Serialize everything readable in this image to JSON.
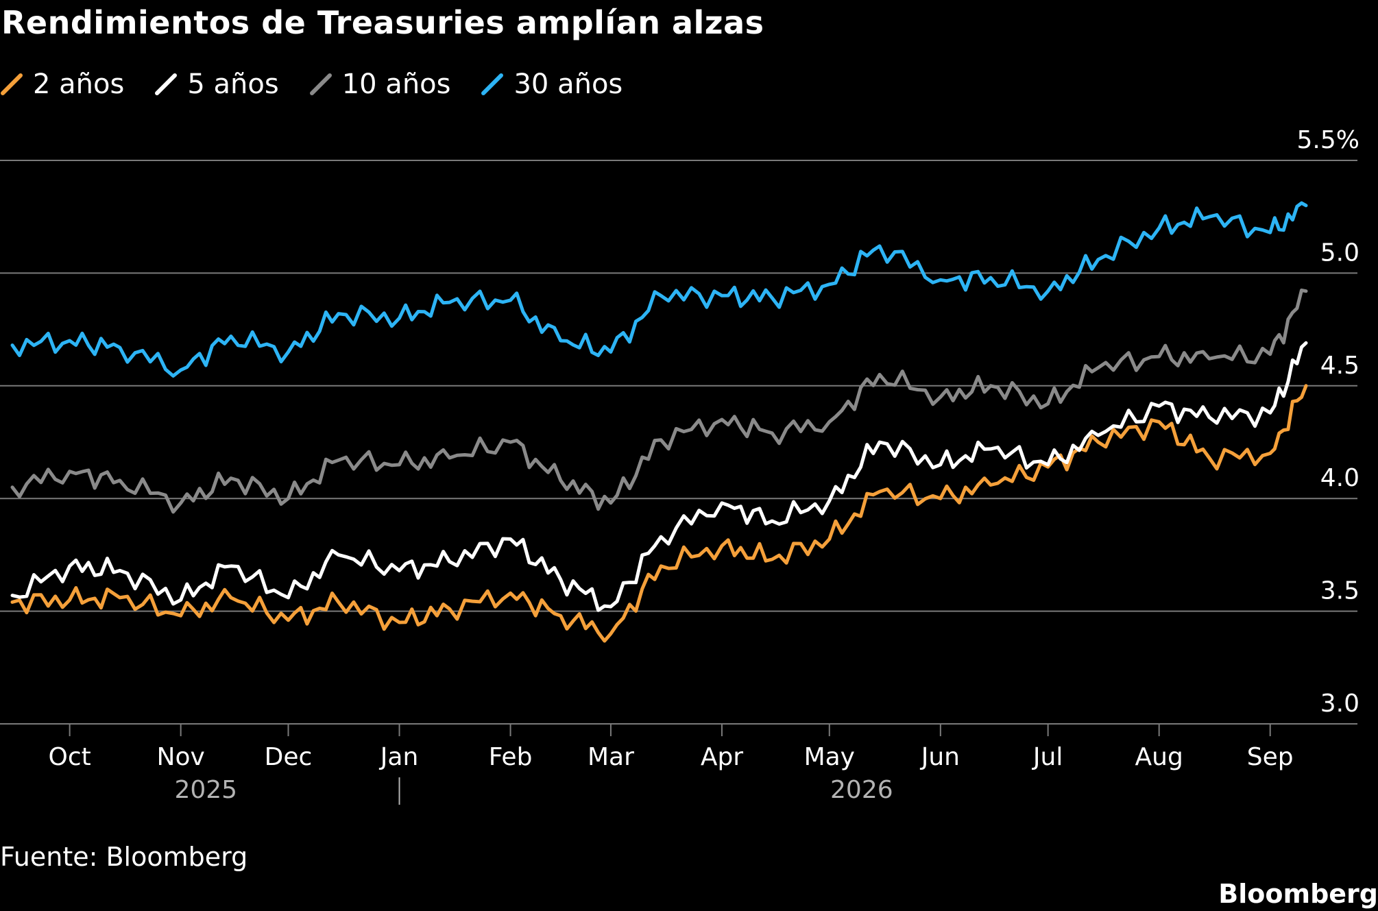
{
  "title": "Rendimientos de Treasuries amplían alzas",
  "source": "Fuente: Bloomberg",
  "brand": "Bloomberg",
  "colors": {
    "background": "#000000",
    "gridline": "#7a7a7a",
    "axis_text": "#ffffff",
    "year_text": "#b3b3b3"
  },
  "chart_data": {
    "type": "line",
    "title": "Rendimientos de Treasuries amplían alzas",
    "xlabel": "",
    "ylabel": "",
    "ylim": [
      3.0,
      5.5
    ],
    "y_ticks": [
      "5.5%",
      "5.0",
      "4.5",
      "4.0",
      "3.5",
      "3.0"
    ],
    "y_tick_values": [
      5.5,
      5.0,
      4.5,
      4.0,
      3.5,
      3.0
    ],
    "x_range": [
      "2025-09-15",
      "2026-09-11"
    ],
    "x_ticks": [
      {
        "label": "Oct",
        "date": "2025-10-01"
      },
      {
        "label": "Nov",
        "date": "2025-11-01"
      },
      {
        "label": "Dec",
        "date": "2025-12-01"
      },
      {
        "label": "Jan",
        "date": "2026-01-01"
      },
      {
        "label": "Feb",
        "date": "2026-02-01"
      },
      {
        "label": "Mar",
        "date": "2026-03-01"
      },
      {
        "label": "Apr",
        "date": "2026-04-01"
      },
      {
        "label": "May",
        "date": "2026-05-01"
      },
      {
        "label": "Jun",
        "date": "2026-06-01"
      },
      {
        "label": "Jul",
        "date": "2026-07-01"
      },
      {
        "label": "Aug",
        "date": "2026-08-01"
      },
      {
        "label": "Sep",
        "date": "2026-09-01"
      }
    ],
    "year_labels": [
      {
        "label": "2025",
        "date": "2025-11-08"
      },
      {
        "label": "2026",
        "date": "2026-05-10"
      }
    ],
    "year_divider_date": "2026-01-01",
    "grid": "horizontal",
    "legend_position": "top-left",
    "x": [
      "2025-09-15",
      "2025-10-01",
      "2025-10-15",
      "2025-11-01",
      "2025-11-15",
      "2025-12-01",
      "2025-12-15",
      "2026-01-01",
      "2026-01-15",
      "2026-02-01",
      "2026-02-15",
      "2026-03-01",
      "2026-03-15",
      "2026-04-01",
      "2026-04-15",
      "2026-05-01",
      "2026-05-15",
      "2026-06-01",
      "2026-06-15",
      "2026-07-01",
      "2026-07-15",
      "2026-08-01",
      "2026-08-15",
      "2026-09-01",
      "2026-09-11"
    ],
    "series": [
      {
        "name": "2 años",
        "color": "#f5a03a",
        "values": [
          3.54,
          3.55,
          3.56,
          3.48,
          3.56,
          3.46,
          3.54,
          3.45,
          3.51,
          3.58,
          3.48,
          3.4,
          3.7,
          3.79,
          3.73,
          3.82,
          4.03,
          4.0,
          4.06,
          4.14,
          4.25,
          4.34,
          4.18,
          4.2,
          4.5
        ]
      },
      {
        "name": "5 años",
        "color": "#ffffff",
        "values": [
          3.57,
          3.7,
          3.68,
          3.55,
          3.7,
          3.56,
          3.75,
          3.68,
          3.72,
          3.82,
          3.64,
          3.52,
          3.83,
          3.98,
          3.9,
          3.99,
          4.25,
          4.15,
          4.22,
          4.15,
          4.28,
          4.41,
          4.36,
          4.38,
          4.69
        ]
      },
      {
        "name": "10 años",
        "color": "#8a8a8a",
        "values": [
          4.05,
          4.12,
          4.08,
          3.98,
          4.09,
          4.0,
          4.17,
          4.15,
          4.18,
          4.25,
          4.08,
          3.98,
          4.26,
          4.35,
          4.29,
          4.34,
          4.55,
          4.45,
          4.5,
          4.42,
          4.58,
          4.63,
          4.62,
          4.64,
          4.92
        ]
      },
      {
        "name": "30 años",
        "color": "#2db4f5",
        "values": [
          4.68,
          4.7,
          4.67,
          4.57,
          4.72,
          4.65,
          4.82,
          4.8,
          4.87,
          4.88,
          4.7,
          4.65,
          4.9,
          4.9,
          4.89,
          4.95,
          5.12,
          4.97,
          4.98,
          4.92,
          5.06,
          5.2,
          5.25,
          5.18,
          5.3
        ]
      }
    ]
  }
}
